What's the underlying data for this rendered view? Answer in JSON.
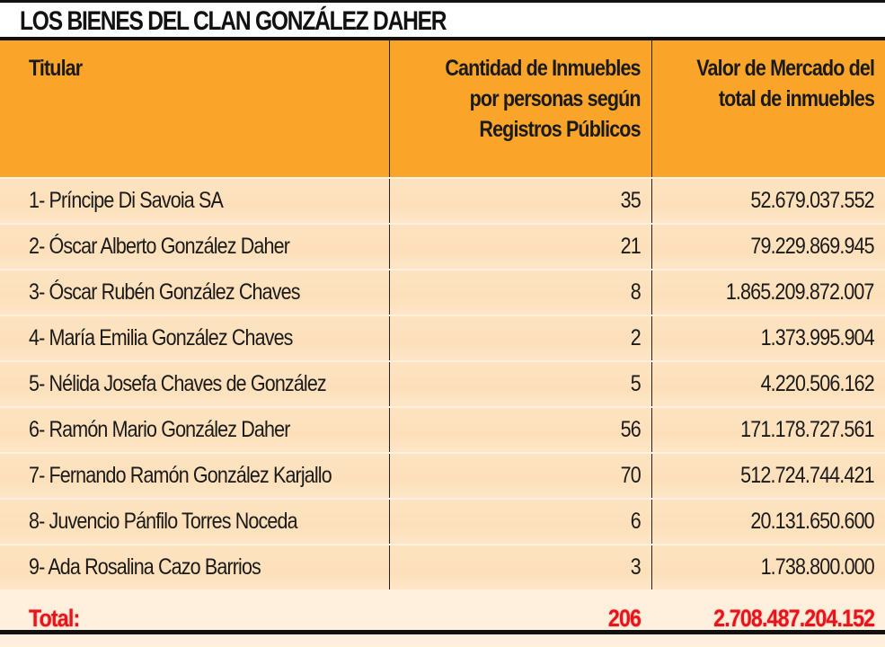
{
  "title": "LOS BIENES DEL CLAN GONZÁLEZ DAHER",
  "headers": {
    "titular": "Titular",
    "cantidad": [
      "Cantidad de Inmuebles",
      "por personas según",
      "Registros Públicos"
    ],
    "valor": [
      "Valor de Mercado del",
      "total de inmuebles"
    ]
  },
  "rows": [
    {
      "titular": "1- Príncipe Di Savoia SA",
      "cantidad": "35",
      "valor": "52.679.037.552"
    },
    {
      "titular": "2- Óscar Alberto González Daher",
      "cantidad": "21",
      "valor": "79.229.869.945"
    },
    {
      "titular": "3- Óscar Rubén González Chaves",
      "cantidad": "8",
      "valor": "1.865.209.872.007"
    },
    {
      "titular": "4- María Emilia González Chaves",
      "cantidad": "2",
      "valor": "1.373.995.904"
    },
    {
      "titular": "5- Nélida Josefa Chaves de González",
      "cantidad": "5",
      "valor": "4.220.506.162"
    },
    {
      "titular": "6- Ramón Mario González Daher",
      "cantidad": "56",
      "valor": "171.178.727.561"
    },
    {
      "titular": "7- Fernando Ramón González Karjallo",
      "cantidad": "70",
      "valor": "512.724.744.421"
    },
    {
      "titular": "8- Juvencio Pánfilo Torres Noceda",
      "cantidad": "6",
      "valor": "20.131.650.600"
    },
    {
      "titular": "9- Ada Rosalina Cazo Barrios",
      "cantidad": "3",
      "valor": "1.738.800.000"
    }
  ],
  "total": {
    "label": "Total:",
    "cantidad": "206",
    "valor": "2.708.487.204.152"
  },
  "colors": {
    "header": "#fba42a",
    "total_text": "#e8141b",
    "row": "#fde3c2"
  }
}
